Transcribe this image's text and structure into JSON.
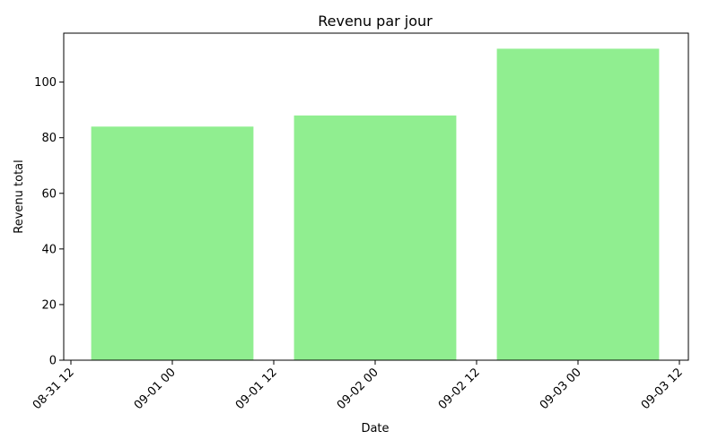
{
  "chart_data": {
    "type": "bar",
    "title": "Revenu par jour",
    "xlabel": "Date",
    "ylabel": "Revenu total",
    "bar_color": "#90ee90",
    "x": [
      "2023-09-01",
      "2023-09-02",
      "2023-09-03"
    ],
    "values": [
      84,
      88,
      112
    ],
    "x_ticks": [
      "08-31 12",
      "09-01 00",
      "09-01 12",
      "09-02 00",
      "09-02 12",
      "09-03 00",
      "09-03 12"
    ],
    "y_ticks": [
      0,
      20,
      40,
      60,
      80,
      100
    ],
    "ylim": [
      0,
      117.6
    ],
    "grid": false,
    "legend": "none"
  }
}
